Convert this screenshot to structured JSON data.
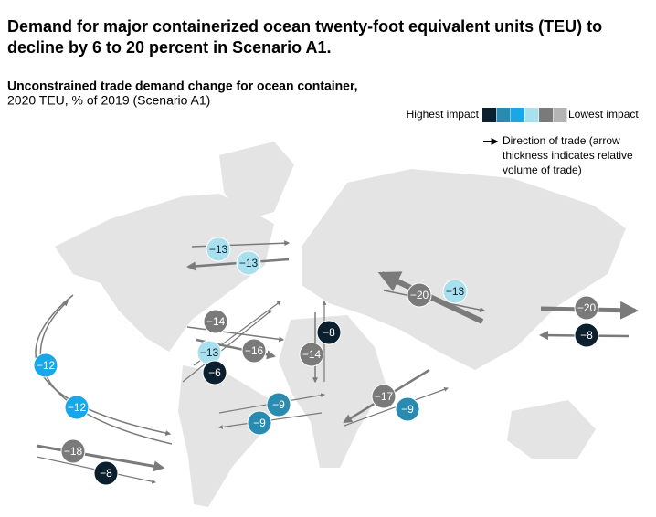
{
  "title": [
    "Demand for major containerized ocean twenty-foot equivalent units (TEU) to",
    "decline by 6 to 20 percent in Scenario A1."
  ],
  "subtitle": [
    "Unconstrained trade demand change for ocean container,",
    "2020 TEU, % of 2019 (Scenario A1)"
  ],
  "legend": {
    "high": "Highest impact",
    "low": "Lowest impact",
    "colors": [
      "#0b1f2e",
      "#2a8bb0",
      "#1aa7e8",
      "#a8e0ee",
      "#7a7a7a",
      "#b4b4b4"
    ],
    "arrow": [
      "Direction of trade (arrow",
      "thickness indicates relative",
      "volume of trade)"
    ]
  },
  "flows": [
    {
      "label": "−13",
      "color": "#a8e0ee"
    },
    {
      "label": "−13",
      "color": "#a8e0ee"
    },
    {
      "label": "−14",
      "color": "#7a7a7a"
    },
    {
      "label": "−16",
      "color": "#7a7a7a"
    },
    {
      "label": "−13",
      "color": "#a8e0ee"
    },
    {
      "label": "−6",
      "color": "#0b1f2e"
    },
    {
      "label": "−12",
      "color": "#1aa7e8"
    },
    {
      "label": "−12",
      "color": "#1aa7e8"
    },
    {
      "label": "−18",
      "color": "#7a7a7a"
    },
    {
      "label": "−8",
      "color": "#0b1f2e"
    },
    {
      "label": "−9",
      "color": "#2a8bb0"
    },
    {
      "label": "−9",
      "color": "#2a8bb0"
    },
    {
      "label": "−14",
      "color": "#7a7a7a"
    },
    {
      "label": "−8",
      "color": "#0b1f2e"
    },
    {
      "label": "−17",
      "color": "#7a7a7a"
    },
    {
      "label": "−9",
      "color": "#2a8bb0"
    },
    {
      "label": "−20",
      "color": "#7a7a7a"
    },
    {
      "label": "−13",
      "color": "#a8e0ee"
    },
    {
      "label": "−20",
      "color": "#7a7a7a"
    },
    {
      "label": "−8",
      "color": "#0b1f2e"
    }
  ]
}
